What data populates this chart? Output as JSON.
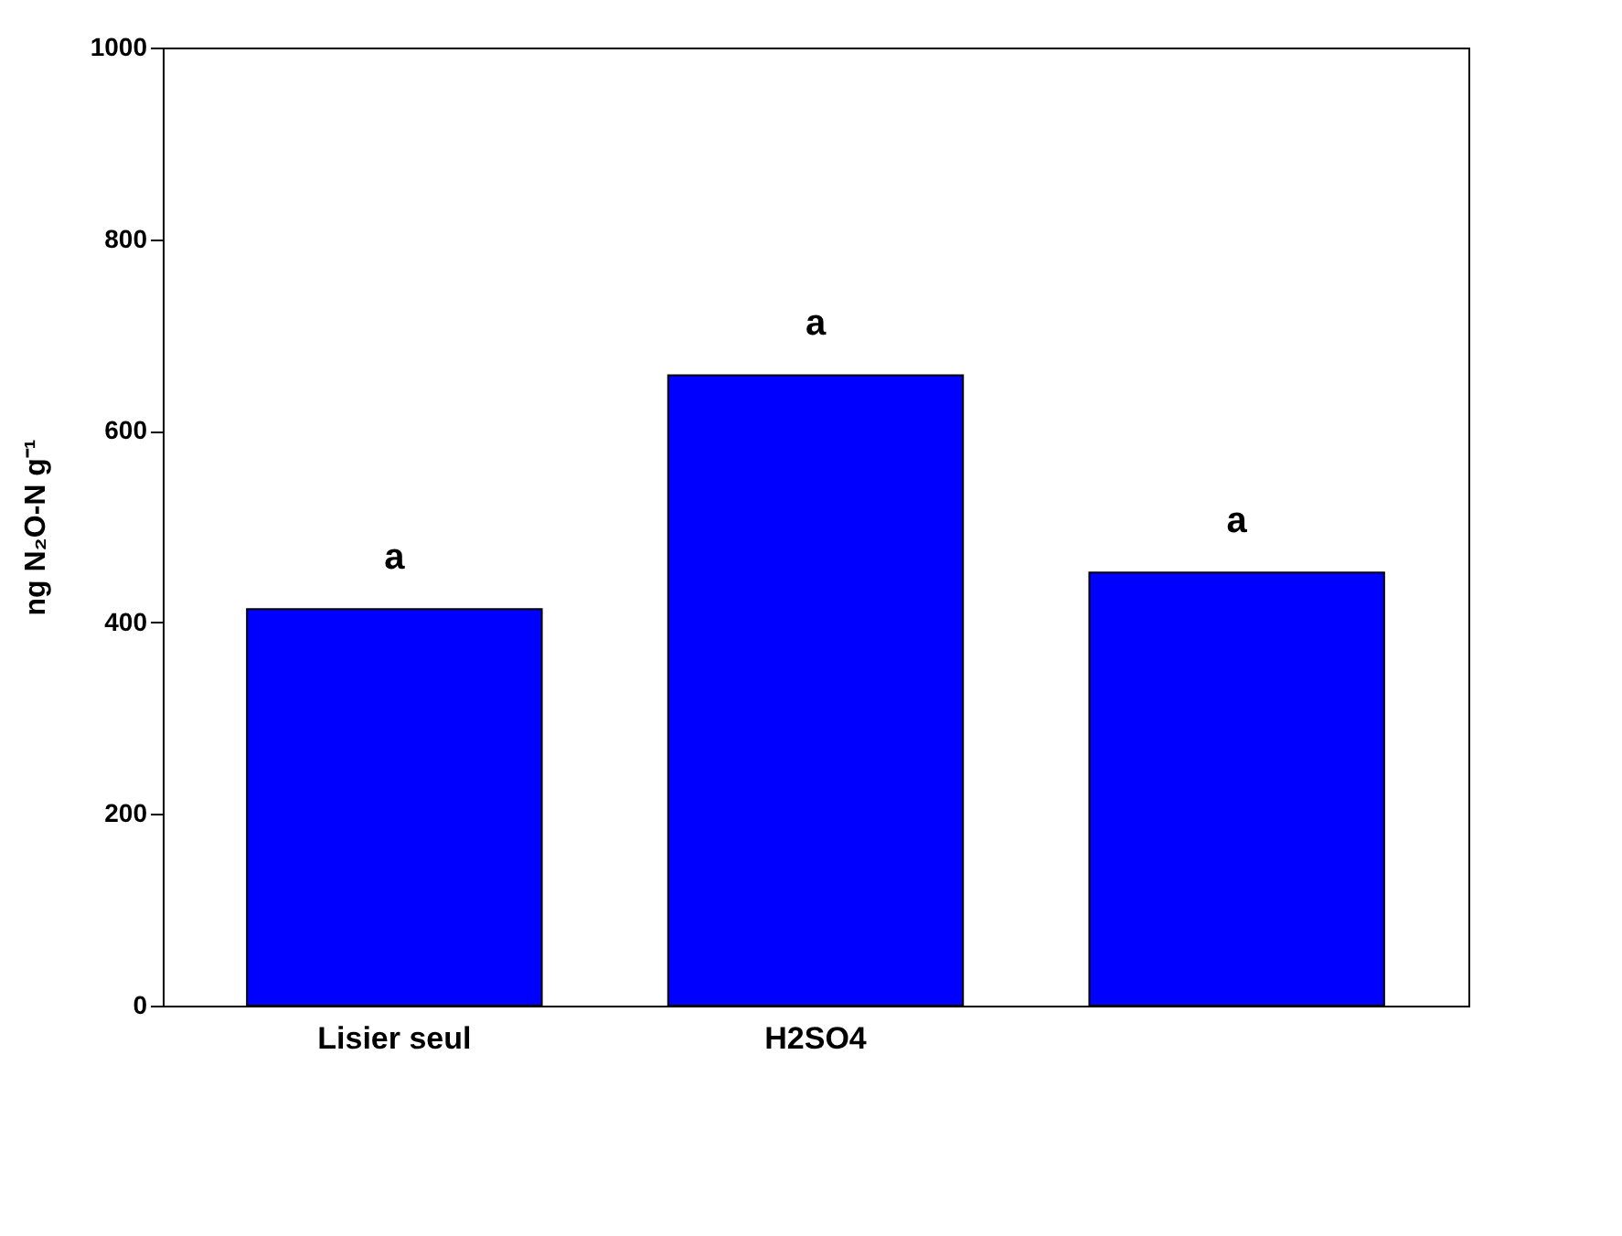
{
  "chart_data": {
    "type": "bar",
    "categories": [
      "Lisier seul",
      "H2SO4",
      null
    ],
    "values": [
      414,
      658,
      452
    ],
    "color": "#0000ff",
    "ylabel": "ng N₂O-N g⁻¹",
    "ylim": [
      0,
      1000
    ],
    "yticks": [
      0,
      200,
      400,
      600,
      800,
      1000
    ],
    "grid": false,
    "annotations": [
      {
        "text": "a",
        "x": "Lisier seul",
        "y": 414
      },
      {
        "text": "a",
        "x": "H2SO4",
        "y": 658
      },
      {
        "text": "a",
        "y": 452
      }
    ]
  }
}
